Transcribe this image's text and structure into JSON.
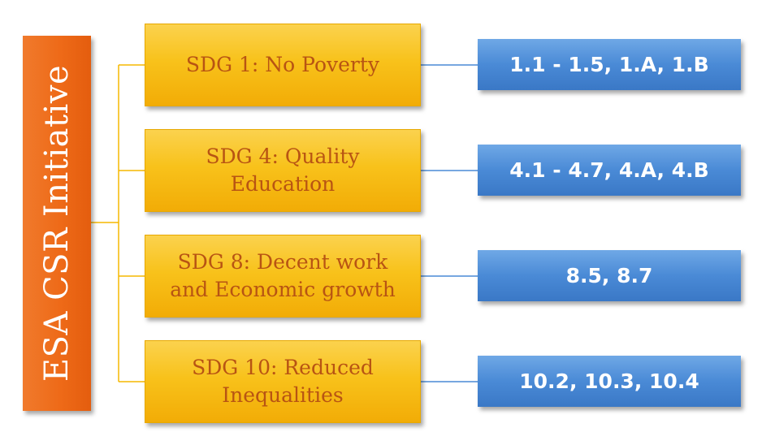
{
  "root": {
    "label": "ESA CSR Initiative",
    "color": "#ee6a18"
  },
  "goals": [
    {
      "label": "SDG 1: No Poverty",
      "targets": "1.1 - 1.5, 1.A, 1.B"
    },
    {
      "label": "SDG 4: Quality\nEducation",
      "targets": "4.1 - 4.7, 4.A, 4.B"
    },
    {
      "label": "SDG 8: Decent work\nand Economic growth",
      "targets": "8.5, 8.7"
    },
    {
      "label": "SDG 10: Reduced\nInequalities",
      "targets": "10.2, 10.3, 10.4"
    }
  ],
  "colors": {
    "goal_fill": "#f8c21b",
    "goal_text": "#b85413",
    "target_fill": "#4a8ad6",
    "target_text": "#ffffff",
    "connector_yellow": "#f5b800",
    "connector_blue": "#4a8ad6"
  }
}
